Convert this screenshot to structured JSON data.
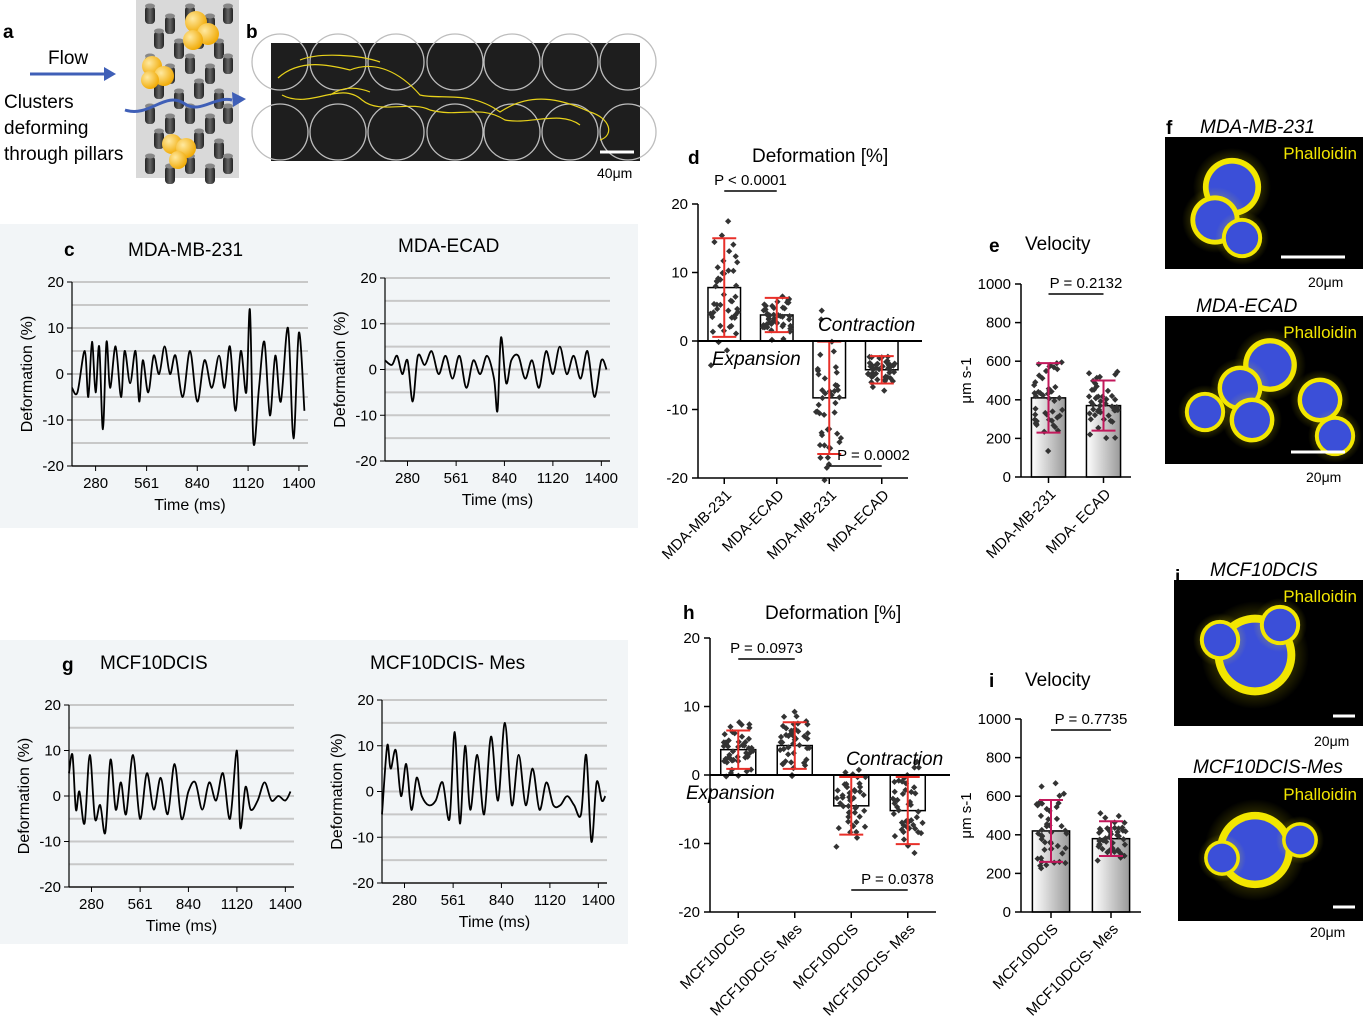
{
  "panel_labels": {
    "a": "a",
    "b": "b",
    "c": "c",
    "d": "d",
    "e": "e",
    "f": "f",
    "g": "g",
    "h": "h",
    "i": "i",
    "j": "j"
  },
  "panel_a": {
    "flow_label": "Flow",
    "cluster_text": [
      "Clusters",
      "deforming",
      "through pillars"
    ]
  },
  "panel_b": {
    "scale_label": "40μm"
  },
  "traces": {
    "ylabel": "Deformation (%)",
    "xlabel": "Time (ms)",
    "x_ticks": [
      "280",
      "561",
      "840",
      "1120",
      "1400"
    ],
    "y_ticks": [
      "20",
      "10",
      "0",
      "-10",
      "-20"
    ],
    "c_left_title": "MDA-MB-231",
    "c_right_title": "MDA-ECAD",
    "g_left_title": "MCF10DCIS",
    "g_right_title": "MCF10DCIS- Mes"
  },
  "chart_data": [
    {
      "id": "c-left",
      "type": "line",
      "title": "MDA-MB-231",
      "xlabel": "Time (ms)",
      "ylabel": "Deformation (%)",
      "xlim": [
        150,
        1450
      ],
      "ylim": [
        -20,
        20
      ],
      "series": [
        {
          "x": [
            150,
            180,
            220,
            240,
            260,
            280,
            300,
            320,
            340,
            360,
            390,
            420,
            440,
            470,
            500,
            520,
            540,
            570,
            600,
            630,
            660,
            690,
            720,
            760,
            800,
            840,
            880,
            920,
            960,
            990,
            1020,
            1050,
            1080,
            1110,
            1130,
            1150,
            1180,
            1210,
            1240,
            1270,
            1300,
            1340,
            1370,
            1400,
            1430
          ],
          "y": [
            -3,
            -4,
            5,
            -5,
            7,
            -4,
            6,
            -12,
            7,
            -3,
            6,
            -5,
            5,
            -2,
            5,
            -6,
            3,
            -4,
            4,
            0,
            6,
            0,
            4,
            -5,
            5,
            -6,
            3,
            -3,
            4,
            -3,
            6,
            -8,
            5,
            -4,
            14,
            -15,
            -3,
            7,
            -9,
            4,
            -6,
            10,
            -14,
            9,
            -8
          ]
        }
      ]
    },
    {
      "id": "c-right",
      "type": "line",
      "title": "MDA-ECAD",
      "xlabel": "Time (ms)",
      "ylabel": "Deformation (%)",
      "xlim": [
        150,
        1450
      ],
      "ylim": [
        -20,
        20
      ],
      "series": [
        {
          "x": [
            150,
            190,
            220,
            250,
            280,
            310,
            340,
            380,
            420,
            460,
            500,
            540,
            580,
            620,
            660,
            700,
            740,
            780,
            800,
            820,
            850,
            880,
            920,
            960,
            1000,
            1040,
            1080,
            1120,
            1160,
            1200,
            1240,
            1280,
            1320,
            1360,
            1400,
            1430
          ],
          "y": [
            2,
            1,
            3,
            -1,
            2,
            -7,
            3,
            1,
            4,
            -1,
            3,
            -2,
            3,
            -4,
            2,
            -1,
            3,
            -2,
            -9,
            7,
            -3,
            2,
            3,
            -2,
            2,
            -4,
            4,
            -1,
            5,
            -1,
            3,
            -2,
            4,
            -6,
            2,
            0
          ]
        }
      ]
    },
    {
      "id": "g-left",
      "type": "line",
      "title": "MCF10DCIS",
      "xlabel": "Time (ms)",
      "ylabel": "Deformation (%)",
      "xlim": [
        150,
        1450
      ],
      "ylim": [
        -20,
        20
      ],
      "series": [
        {
          "x": [
            150,
            170,
            190,
            210,
            240,
            270,
            300,
            330,
            360,
            390,
            420,
            450,
            480,
            520,
            560,
            600,
            640,
            680,
            720,
            760,
            800,
            840,
            880,
            920,
            960,
            1000,
            1040,
            1080,
            1120,
            1140,
            1170,
            1200,
            1240,
            1280,
            1320,
            1360,
            1400,
            1430
          ],
          "y": [
            5,
            9,
            -3,
            1,
            -6,
            9,
            -5,
            -2,
            -8,
            8,
            -3,
            3,
            -4,
            9,
            -5,
            5,
            -3,
            4,
            -4,
            7,
            -5,
            1,
            3,
            -3,
            3,
            -1,
            5,
            -5,
            10,
            -7,
            2,
            -3,
            -1,
            3,
            -1,
            0,
            -1,
            1
          ]
        }
      ]
    },
    {
      "id": "g-right",
      "type": "line",
      "title": "MCF10DCIS- Mes",
      "xlabel": "Time (ms)",
      "ylabel": "Deformation (%)",
      "xlim": [
        150,
        1450
      ],
      "ylim": [
        -20,
        20
      ],
      "series": [
        {
          "x": [
            150,
            180,
            200,
            230,
            260,
            290,
            320,
            350,
            380,
            420,
            460,
            500,
            540,
            570,
            600,
            630,
            660,
            700,
            740,
            780,
            820,
            860,
            900,
            940,
            980,
            1020,
            1060,
            1100,
            1140,
            1180,
            1220,
            1260,
            1300,
            1330,
            1360,
            1390,
            1420,
            1440
          ],
          "y": [
            -5,
            10,
            5,
            9,
            -1,
            6,
            -4,
            3,
            -1,
            -3,
            -2,
            2,
            -6,
            13,
            -7,
            10,
            -4,
            8,
            -5,
            12,
            -2,
            15,
            -3,
            8,
            -3,
            5,
            -4,
            2,
            -3,
            -3,
            -1,
            -3,
            -5,
            8,
            -11,
            2,
            -2,
            -1
          ]
        }
      ]
    },
    {
      "id": "d",
      "type": "bar",
      "title": "Deformation [%]",
      "categories": [
        "MDA-MB-231",
        "MDA-ECAD",
        "MDA-MB-231",
        "MDA-ECAD"
      ],
      "ylim": [
        -20,
        20
      ],
      "y_ticks": [
        "20",
        "10",
        "0",
        "-10",
        "-20"
      ],
      "values": [
        7.8,
        3.8,
        -8.3,
        -4.2
      ],
      "sd": [
        7.2,
        2.5,
        8.2,
        2.0
      ],
      "annotations": {
        "p_top": "P < 0.0001",
        "p_bottom": "P = 0.0002",
        "expansion": "Expansion",
        "contraction": "Contraction"
      }
    },
    {
      "id": "e",
      "type": "bar",
      "title": "Velocity",
      "ylabel": "μm s-1",
      "categories": [
        "MDA-MB-231",
        "MDA- ECAD"
      ],
      "ylim": [
        0,
        1000
      ],
      "y_ticks": [
        "1000",
        "800",
        "600",
        "400",
        "200",
        "0"
      ],
      "values": [
        410,
        370
      ],
      "sd": [
        180,
        130
      ],
      "annotations": {
        "p": "P = 0.2132"
      }
    },
    {
      "id": "h",
      "type": "bar",
      "title": "Deformation [%]",
      "categories": [
        "MCF10DCIS",
        "MCF10DCIS- Mes",
        "MCF10DCIS",
        "MCF10DCIS- Mes"
      ],
      "ylim": [
        -20,
        20
      ],
      "y_ticks": [
        "20",
        "10",
        "0",
        "-10",
        "-20"
      ],
      "values": [
        3.7,
        4.3,
        -4.5,
        -5.2
      ],
      "sd": [
        2.8,
        3.4,
        4.2,
        4.9
      ],
      "annotations": {
        "p_top": "P = 0.0973",
        "p_bottom": "P = 0.0378",
        "expansion": "Expansion",
        "contraction": "Contraction"
      }
    },
    {
      "id": "i",
      "type": "bar",
      "title": "Velocity",
      "ylabel": "μm s-1",
      "categories": [
        "MCF10DCIS",
        "MCF10DCIS- Mes"
      ],
      "ylim": [
        0,
        1000
      ],
      "y_ticks": [
        "1000",
        "800",
        "600",
        "400",
        "200",
        "0"
      ],
      "values": [
        420,
        380
      ],
      "sd": [
        160,
        90
      ],
      "annotations": {
        "p": "P = 0.7735"
      }
    }
  ],
  "images": {
    "f1_title": "MDA-MB-231",
    "f2_title": "MDA-ECAD",
    "j1_title": "MCF10DCIS",
    "j2_title": "MCF10DCIS-Mes",
    "stain": "Phalloidin",
    "scale_label": "20μm"
  },
  "colors": {
    "stain_yellow": "#f2e600",
    "nucleus_blue": "#3b4fd8",
    "error_red": "#e8302a",
    "error_magenta": "#c2185b",
    "arrow_blue": "#3f5fb7",
    "trace_panel_bg": "#f2f5f7"
  }
}
